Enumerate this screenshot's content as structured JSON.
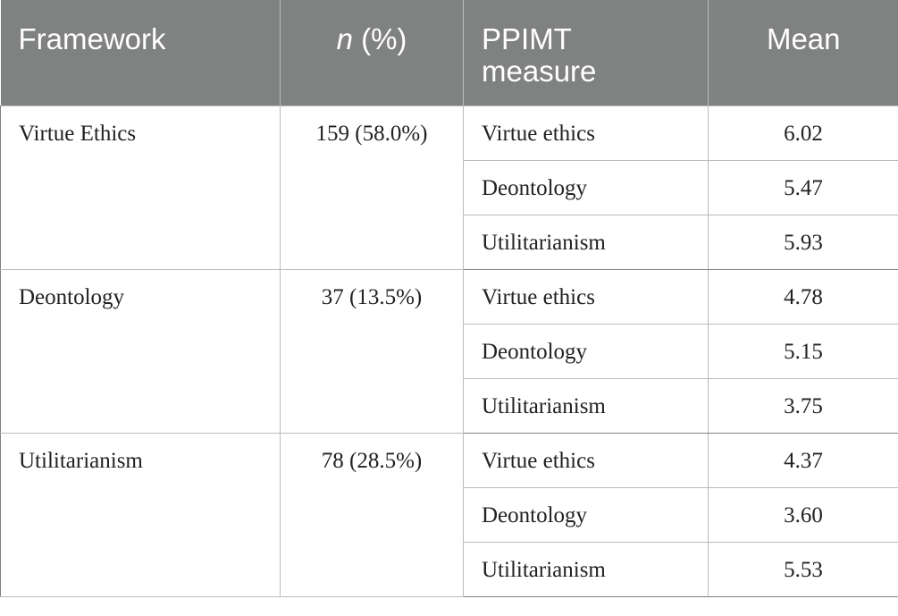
{
  "header": {
    "framework": "Framework",
    "n_italic": "n",
    "n_rest": " (%)",
    "measure_line1": "PPIMT",
    "measure_line2": "measure",
    "mean": "Mean"
  },
  "groups": [
    {
      "framework": "Virtue Ethics",
      "n": "159 (58.0%)",
      "rows": [
        {
          "measure": "Virtue ethics",
          "mean": "6.02"
        },
        {
          "measure": "Deontology",
          "mean": "5.47"
        },
        {
          "measure": "Utilitarianism",
          "mean": "5.93"
        }
      ]
    },
    {
      "framework": "Deontology",
      "n": "37 (13.5%)",
      "rows": [
        {
          "measure": "Virtue ethics",
          "mean": "4.78"
        },
        {
          "measure": "Deontology",
          "mean": "5.15"
        },
        {
          "measure": "Utilitarianism",
          "mean": "3.75"
        }
      ]
    },
    {
      "framework": "Utilitarianism",
      "n": "78 (28.5%)",
      "rows": [
        {
          "measure": "Virtue ethics",
          "mean": "4.37"
        },
        {
          "measure": "Deontology",
          "mean": "3.60"
        },
        {
          "measure": "Utilitarianism",
          "mean": "5.53"
        }
      ]
    }
  ],
  "colors": {
    "header_bg": "#7f8281",
    "header_text": "#ffffff",
    "border": "#b9bcbc"
  }
}
